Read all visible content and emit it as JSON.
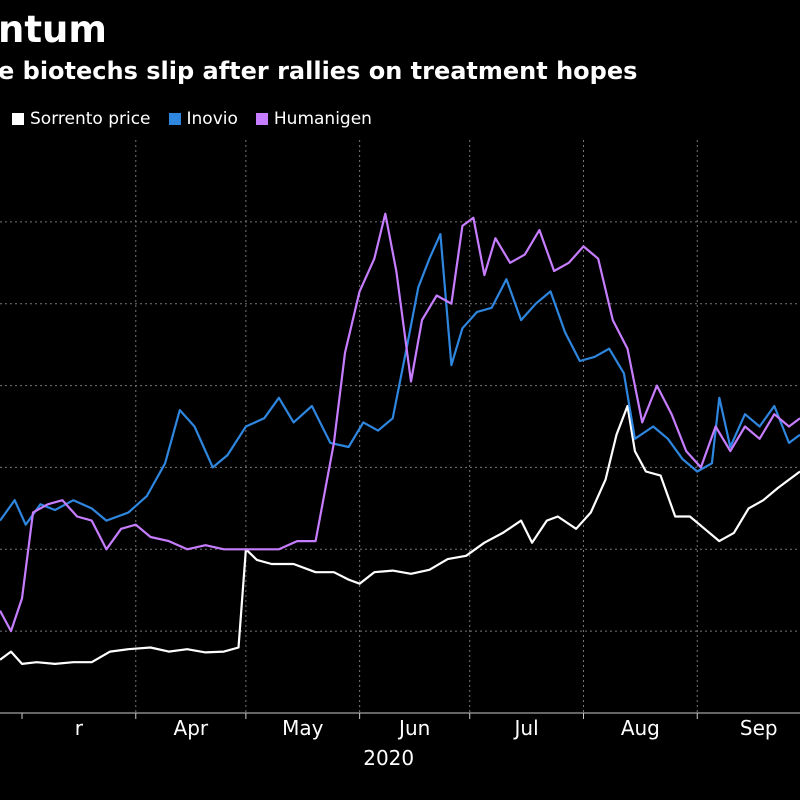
{
  "header": {
    "title": "ntum",
    "subtitle": "e biotechs slip after rallies on treatment hopes"
  },
  "legend": {
    "items": [
      {
        "label": "Sorrento price",
        "color": "#ffffff"
      },
      {
        "label": "Inovio",
        "color": "#2e86de"
      },
      {
        "label": "Humanigen",
        "color": "#c77dff"
      }
    ]
  },
  "chart_data": {
    "type": "line",
    "title": "ntum",
    "subtitle": "e biotechs slip after rallies on treatment hopes",
    "xlabel": "",
    "ylabel": "",
    "year_label": "2020",
    "x_ticks": [
      "r",
      "Apr",
      "May",
      "Jun",
      "Jul",
      "Aug",
      "Sep"
    ],
    "x_tick_dates": [
      "2020-03-01",
      "2020-04-01",
      "2020-05-01",
      "2020-06-01",
      "2020-07-01",
      "2020-08-01",
      "2020-09-01"
    ],
    "x_range": [
      "2020-02-24",
      "2020-09-29"
    ],
    "y_range": [
      0,
      7
    ],
    "grid": true,
    "legend_position": "top-left",
    "series": [
      {
        "name": "Sorrento price",
        "color": "#ffffff",
        "points": [
          [
            "2020-02-24",
            0.65
          ],
          [
            "2020-02-27",
            0.75
          ],
          [
            "2020-03-01",
            0.6
          ],
          [
            "2020-03-05",
            0.62
          ],
          [
            "2020-03-10",
            0.6
          ],
          [
            "2020-03-15",
            0.62
          ],
          [
            "2020-03-20",
            0.62
          ],
          [
            "2020-03-25",
            0.75
          ],
          [
            "2020-03-30",
            0.78
          ],
          [
            "2020-04-05",
            0.8
          ],
          [
            "2020-04-10",
            0.75
          ],
          [
            "2020-04-15",
            0.78
          ],
          [
            "2020-04-20",
            0.74
          ],
          [
            "2020-04-25",
            0.75
          ],
          [
            "2020-04-29",
            0.8
          ],
          [
            "2020-05-01",
            2.0
          ],
          [
            "2020-05-04",
            1.87
          ],
          [
            "2020-05-08",
            1.82
          ],
          [
            "2020-05-14",
            1.82
          ],
          [
            "2020-05-20",
            1.72
          ],
          [
            "2020-05-25",
            1.72
          ],
          [
            "2020-05-29",
            1.63
          ],
          [
            "2020-06-01",
            1.58
          ],
          [
            "2020-06-05",
            1.72
          ],
          [
            "2020-06-10",
            1.74
          ],
          [
            "2020-06-15",
            1.7
          ],
          [
            "2020-06-20",
            1.75
          ],
          [
            "2020-06-25",
            1.88
          ],
          [
            "2020-06-30",
            1.92
          ],
          [
            "2020-07-05",
            2.08
          ],
          [
            "2020-07-10",
            2.2
          ],
          [
            "2020-07-15",
            2.35
          ],
          [
            "2020-07-18",
            2.08
          ],
          [
            "2020-07-22",
            2.35
          ],
          [
            "2020-07-25",
            2.4
          ],
          [
            "2020-07-30",
            2.25
          ],
          [
            "2020-08-03",
            2.45
          ],
          [
            "2020-08-07",
            2.85
          ],
          [
            "2020-08-10",
            3.4
          ],
          [
            "2020-08-13",
            3.75
          ],
          [
            "2020-08-15",
            3.2
          ],
          [
            "2020-08-18",
            2.95
          ],
          [
            "2020-08-22",
            2.9
          ],
          [
            "2020-08-26",
            2.4
          ],
          [
            "2020-08-30",
            2.4
          ],
          [
            "2020-09-03",
            2.25
          ],
          [
            "2020-09-07",
            2.1
          ],
          [
            "2020-09-11",
            2.2
          ],
          [
            "2020-09-15",
            2.5
          ],
          [
            "2020-09-19",
            2.6
          ],
          [
            "2020-09-23",
            2.75
          ],
          [
            "2020-09-29",
            2.95
          ]
        ]
      },
      {
        "name": "Inovio",
        "color": "#2e86de",
        "points": [
          [
            "2020-02-24",
            2.35
          ],
          [
            "2020-02-28",
            2.6
          ],
          [
            "2020-03-02",
            2.3
          ],
          [
            "2020-03-06",
            2.55
          ],
          [
            "2020-03-10",
            2.48
          ],
          [
            "2020-03-15",
            2.6
          ],
          [
            "2020-03-20",
            2.5
          ],
          [
            "2020-03-24",
            2.35
          ],
          [
            "2020-03-30",
            2.45
          ],
          [
            "2020-04-04",
            2.65
          ],
          [
            "2020-04-09",
            3.05
          ],
          [
            "2020-04-13",
            3.7
          ],
          [
            "2020-04-17",
            3.5
          ],
          [
            "2020-04-22",
            3.0
          ],
          [
            "2020-04-26",
            3.15
          ],
          [
            "2020-05-01",
            3.5
          ],
          [
            "2020-05-06",
            3.6
          ],
          [
            "2020-05-10",
            3.85
          ],
          [
            "2020-05-14",
            3.55
          ],
          [
            "2020-05-19",
            3.75
          ],
          [
            "2020-05-24",
            3.3
          ],
          [
            "2020-05-29",
            3.25
          ],
          [
            "2020-06-02",
            3.55
          ],
          [
            "2020-06-06",
            3.45
          ],
          [
            "2020-06-10",
            3.6
          ],
          [
            "2020-06-14",
            4.5
          ],
          [
            "2020-06-17",
            5.2
          ],
          [
            "2020-06-20",
            5.55
          ],
          [
            "2020-06-23",
            5.85
          ],
          [
            "2020-06-26",
            4.25
          ],
          [
            "2020-06-29",
            4.7
          ],
          [
            "2020-07-03",
            4.9
          ],
          [
            "2020-07-07",
            4.95
          ],
          [
            "2020-07-11",
            5.3
          ],
          [
            "2020-07-15",
            4.8
          ],
          [
            "2020-07-19",
            5.0
          ],
          [
            "2020-07-23",
            5.15
          ],
          [
            "2020-07-27",
            4.65
          ],
          [
            "2020-07-31",
            4.3
          ],
          [
            "2020-08-04",
            4.35
          ],
          [
            "2020-08-08",
            4.45
          ],
          [
            "2020-08-12",
            4.15
          ],
          [
            "2020-08-15",
            3.35
          ],
          [
            "2020-08-20",
            3.5
          ],
          [
            "2020-08-24",
            3.35
          ],
          [
            "2020-08-28",
            3.1
          ],
          [
            "2020-09-01",
            2.95
          ],
          [
            "2020-09-05",
            3.05
          ],
          [
            "2020-09-07",
            3.85
          ],
          [
            "2020-09-10",
            3.25
          ],
          [
            "2020-09-14",
            3.65
          ],
          [
            "2020-09-18",
            3.5
          ],
          [
            "2020-09-22",
            3.75
          ],
          [
            "2020-09-26",
            3.3
          ],
          [
            "2020-09-29",
            3.4
          ]
        ]
      },
      {
        "name": "Humanigen",
        "color": "#c77dff",
        "points": [
          [
            "2020-02-24",
            1.25
          ],
          [
            "2020-02-27",
            1.0
          ],
          [
            "2020-03-01",
            1.4
          ],
          [
            "2020-03-04",
            2.45
          ],
          [
            "2020-03-08",
            2.55
          ],
          [
            "2020-03-12",
            2.6
          ],
          [
            "2020-03-16",
            2.4
          ],
          [
            "2020-03-20",
            2.35
          ],
          [
            "2020-03-24",
            2.0
          ],
          [
            "2020-03-28",
            2.25
          ],
          [
            "2020-04-01",
            2.3
          ],
          [
            "2020-04-05",
            2.15
          ],
          [
            "2020-04-10",
            2.1
          ],
          [
            "2020-04-15",
            2.0
          ],
          [
            "2020-04-20",
            2.05
          ],
          [
            "2020-04-25",
            2.0
          ],
          [
            "2020-04-30",
            2.0
          ],
          [
            "2020-05-05",
            2.0
          ],
          [
            "2020-05-10",
            2.0
          ],
          [
            "2020-05-15",
            2.1
          ],
          [
            "2020-05-20",
            2.1
          ],
          [
            "2020-05-25",
            3.3
          ],
          [
            "2020-05-28",
            4.4
          ],
          [
            "2020-06-01",
            5.15
          ],
          [
            "2020-06-05",
            5.55
          ],
          [
            "2020-06-08",
            6.1
          ],
          [
            "2020-06-11",
            5.4
          ],
          [
            "2020-06-15",
            4.05
          ],
          [
            "2020-06-18",
            4.8
          ],
          [
            "2020-06-22",
            5.1
          ],
          [
            "2020-06-26",
            5.0
          ],
          [
            "2020-06-29",
            5.95
          ],
          [
            "2020-07-02",
            6.05
          ],
          [
            "2020-07-05",
            5.35
          ],
          [
            "2020-07-08",
            5.8
          ],
          [
            "2020-07-12",
            5.5
          ],
          [
            "2020-07-16",
            5.6
          ],
          [
            "2020-07-20",
            5.9
          ],
          [
            "2020-07-24",
            5.4
          ],
          [
            "2020-07-28",
            5.5
          ],
          [
            "2020-08-01",
            5.7
          ],
          [
            "2020-08-05",
            5.55
          ],
          [
            "2020-08-09",
            4.8
          ],
          [
            "2020-08-13",
            4.45
          ],
          [
            "2020-08-17",
            3.55
          ],
          [
            "2020-08-21",
            4.0
          ],
          [
            "2020-08-25",
            3.65
          ],
          [
            "2020-08-29",
            3.2
          ],
          [
            "2020-09-02",
            3.0
          ],
          [
            "2020-09-06",
            3.5
          ],
          [
            "2020-09-10",
            3.2
          ],
          [
            "2020-09-14",
            3.5
          ],
          [
            "2020-09-18",
            3.35
          ],
          [
            "2020-09-22",
            3.65
          ],
          [
            "2020-09-26",
            3.5
          ],
          [
            "2020-09-29",
            3.6
          ]
        ]
      }
    ]
  }
}
